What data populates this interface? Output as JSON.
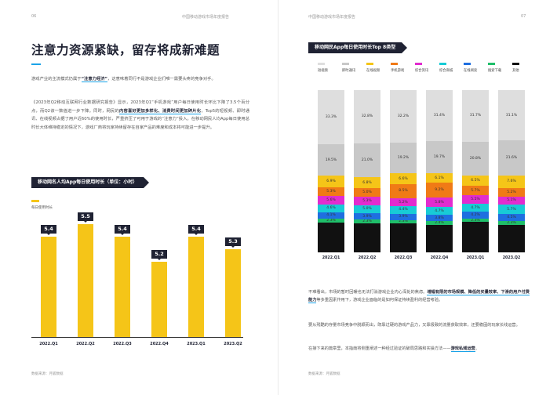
{
  "left": {
    "page_num": "06",
    "running_head": "中国移动游戏市场年度报告",
    "title": "注意力资源紧缺，留存将成新难题",
    "p1_a": "游戏产业的主流模式仍属于",
    "p1_em": "“注意力经济”",
    "p1_b": "，这意味着同行不是游戏企业们唯一需要头疼的竞争对手。",
    "p2_a": "《2023年Q2移动互联网行业数据研究报告》显示，2023年Q1“手机游戏”用户每日使用时长环比下降了3.5个百分点，而Q2该一数值进一步下降。同时，网民的",
    "p2_em": "内容喜好更加多样化、消费时间更加碎片化",
    "p2_b": "，Top5的短视频、即时通讯、在线视频占据了用户近60%的使用时长，严重挤压了可用于游戏的“注意力”投入。在移动网民人均App每日使用总时长大体维持稳定的情况下，游戏厂商将玩家持续留存在自家产品的难度和成本将可能进一步提升。",
    "chart_title": "移动网名人均App每日使用时长（单位：小时）",
    "legend": "每日使用时长",
    "footer": "数据来源：月狐数据"
  },
  "right": {
    "page_num": "07",
    "running_head": "中国移动游戏市场年度报告",
    "chart_title": "移动网民App每日使用时长Top 8类型",
    "p1_a": "不难看出，市场的暂时回暖也无法打消游戏企业内心深处的焦虑。",
    "p1_em": "增幅有限的市场规模、降低的买量效率、下滑的用户付费能力",
    "p1_b": "等多重因素作用下，游戏企业面临的是如何保证持续盈利的经营考验。",
    "p2": "要从残酷的存量市场竞争中脱颖而出，既靠过硬的游戏产品力，又靠极致的流量获取效率，还要稳固的玩家长线运营。",
    "p3_a": "在接下来的篇章里，本指南将侧重阐述一种经过验证的破局思路和实操方法——",
    "p3_em": "游戏私域运营",
    "p3_b": "。",
    "footer": "数据来源：月狐数据"
  },
  "chart_data": [
    {
      "type": "bar",
      "title": "移动网名人均App每日使用时长（单位：小时）",
      "categories": [
        "2022.Q1",
        "2022.Q2",
        "2022.Q3",
        "2022.Q4",
        "2023.Q1",
        "2023.Q2"
      ],
      "series": [
        {
          "name": "每日使用时长",
          "values": [
            5.4,
            5.5,
            5.4,
            5.2,
            5.4,
            5.3
          ]
        }
      ],
      "value_labels": [
        "5.4",
        "5.5",
        "5.4",
        "5.2",
        "5.4",
        "5.3"
      ],
      "color": "#f5c518"
    },
    {
      "type": "bar",
      "stacked": true,
      "title": "移动网民App每日使用时长Top 8类型",
      "categories": [
        "2022.Q1",
        "2022.Q2",
        "2022.Q3",
        "2022.Q4",
        "2023.Q1",
        "2023.Q2"
      ],
      "series": [
        {
          "name": "其他",
          "color": "#111111",
          "values": [
            null,
            null,
            null,
            null,
            null,
            null
          ]
        },
        {
          "name": "搜索下载",
          "color": "#1fbf6a",
          "values": [
            2.3,
            2.3,
            2.3,
            2.4,
            2.3,
            2.3
          ]
        },
        {
          "name": "在线阅读",
          "color": "#1f6fe0",
          "values": [
            4.1,
            3.9,
            3.9,
            3.8,
            4.2,
            4.5
          ]
        },
        {
          "name": "综合商城",
          "color": "#18cbd6",
          "values": [
            4.6,
            5.0,
            4.4,
            4.7,
            4.7,
            5.7
          ]
        },
        {
          "name": "综合资讯",
          "color": "#e22ccf",
          "values": [
            5.6,
            5.3,
            5.2,
            5.8,
            5.5,
            5.1
          ]
        },
        {
          "name": "手机游戏",
          "color": "#f07a16",
          "values": [
            5.3,
            5.0,
            8.5,
            9.2,
            5.7,
            5.2
          ]
        },
        {
          "name": "在线视频",
          "color": "#f5c518",
          "values": [
            6.9,
            6.8,
            6.6,
            6.1,
            6.5,
            7.6
          ]
        },
        {
          "name": "即时通讯",
          "color": "#c8c8c8",
          "values": [
            19.5,
            21.0,
            19.2,
            19.7,
            20.8,
            21.6
          ]
        },
        {
          "name": "短视频",
          "color": "#dedede",
          "values": [
            33.3,
            32.8,
            32.2,
            31.4,
            31.7,
            31.1
          ]
        }
      ],
      "legend_order": [
        "短视频",
        "即时通讯",
        "在线视频",
        "手机游戏",
        "综合资讯",
        "综合商城",
        "在线阅读",
        "搜索下载",
        "其他"
      ],
      "value_labels": {
        "短视频": [
          "33.3%",
          "32.8%",
          "32.2%",
          "31.4%",
          "31.7%",
          "31.1%"
        ],
        "即时通讯": [
          "19.5%",
          "21.0%",
          "19.2%",
          "19.7%",
          "20.8%",
          "21.6%"
        ],
        "在线视频": [
          "6.9%",
          "6.8%",
          "6.6%",
          "6.1%",
          "6.5%",
          "7.6%"
        ],
        "手机游戏": [
          "5.3%",
          "5.0%",
          "8.5%",
          "9.2%",
          "5.7%",
          "5.2%"
        ],
        "综合资讯": [
          "5.6%",
          "5.3%",
          "5.2%",
          "5.8%",
          "5.5%",
          "5.1%"
        ],
        "综合商城": [
          "4.6%",
          "5.0%",
          "4.4%",
          "4.7%",
          "4.7%",
          "5.7%"
        ],
        "在线阅读": [
          "4.1%",
          "3.9%",
          "3.9%",
          "3.8%",
          "4.2%",
          "4.5%"
        ],
        "搜索下载": [
          "2.3%",
          "2.3%",
          "2.3%",
          "2.4%",
          "2.3%",
          "2.3%"
        ]
      },
      "legend_placement": "top"
    }
  ]
}
